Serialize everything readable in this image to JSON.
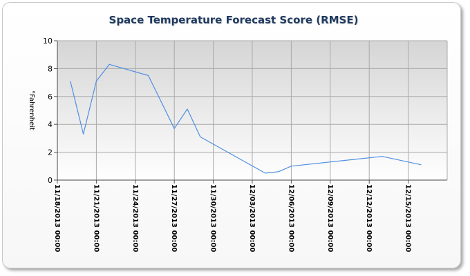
{
  "chart_data": {
    "type": "line",
    "title": "Space Temperature Forecast Score (RMSE)",
    "xlabel": "",
    "ylabel": "°Fahrenheit",
    "ylim": [
      0,
      10
    ],
    "yticks": [
      "0",
      "2",
      "4",
      "6",
      "8",
      "10"
    ],
    "xlim": [
      "2013-11-18 00:00",
      "2013-12-18 00:00"
    ],
    "xticks": [
      "11/18/2013 00:00",
      "11/21/2013 00:00",
      "11/24/2013 00:00",
      "11/27/2013 00:00",
      "11/30/2013 00:00",
      "12/03/2013 00:00",
      "12/06/2013 00:00",
      "12/09/2013 00:00",
      "12/12/2013 00:00",
      "12/15/2013 00:00"
    ],
    "grid": true,
    "legend": "none",
    "line_color": "#4f8fe0",
    "series": [
      {
        "x": [
          "2013-11-19 00:00",
          "2013-11-20 00:00",
          "2013-11-21 00:00",
          "2013-11-22 00:00",
          "2013-11-25 00:00",
          "2013-11-27 00:00",
          "2013-11-28 00:00",
          "2013-11-29 00:00",
          "2013-12-04 00:00",
          "2013-12-05 00:00",
          "2013-12-06 00:00",
          "2013-12-13 00:00",
          "2013-12-16 00:00"
        ],
        "values": [
          7.1,
          3.3,
          7.1,
          8.3,
          7.5,
          3.7,
          5.1,
          3.1,
          0.5,
          0.6,
          1.0,
          1.7,
          1.1
        ]
      }
    ]
  }
}
